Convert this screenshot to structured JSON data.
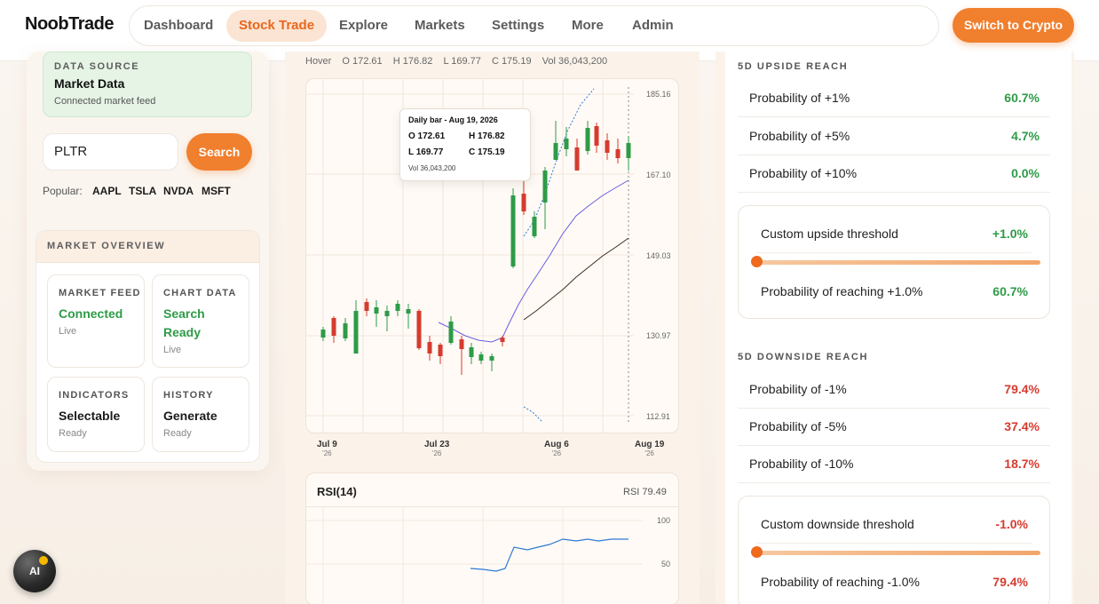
{
  "app": {
    "logo": "NoobTrade",
    "nav": [
      "Dashboard",
      "Stock Trade",
      "Explore",
      "Markets",
      "Settings",
      "More",
      "Admin"
    ],
    "active_nav": "Stock Trade",
    "crypto_button": "Switch to Crypto",
    "accent_color": "#f07f2e"
  },
  "left": {
    "data_source": {
      "label": "DATA SOURCE",
      "title": "Market Data",
      "sub": "Connected market feed"
    },
    "search": {
      "value": "PLTR",
      "button": "Search"
    },
    "popular": {
      "label": "Popular:",
      "tickers": [
        "AAPL",
        "TSLA",
        "NVDA",
        "MSFT"
      ]
    },
    "overview": {
      "title": "MARKET OVERVIEW",
      "cards": [
        {
          "label": "MARKET FEED",
          "value": "Connected",
          "sub": "Live"
        },
        {
          "label": "CHART DATA",
          "value": "Search Ready",
          "sub": "Live"
        },
        {
          "label": "INDICATORS",
          "value": "Selectable",
          "sub": "Ready"
        },
        {
          "label": "HISTORY",
          "value": "Generate",
          "sub": "Ready"
        }
      ]
    }
  },
  "chart": {
    "hover": {
      "label": "Hover",
      "o": "O 172.61",
      "h": "H 176.82",
      "l": "L 169.77",
      "c": "C 175.19",
      "vol": "Vol 36,043,200"
    },
    "tooltip": {
      "title": "Daily bar - Aug 19, 2026",
      "o": "O 172.61",
      "h": "H 176.82",
      "l": "L 169.77",
      "c": "C 175.19",
      "vol": "Vol 36,043,200"
    },
    "y_ticks": [
      "185.16",
      "167.10",
      "149.03",
      "130.97",
      "112.91"
    ],
    "x_ticks": [
      {
        "date": "Jul 9",
        "year": "'26"
      },
      {
        "date": "Jul 23",
        "year": "'26"
      },
      {
        "date": "Aug 6",
        "year": "'26"
      },
      {
        "date": "Aug 19",
        "year": "'26"
      }
    ],
    "up_color": "#2e9b47",
    "down_color": "#d63b2f"
  },
  "rsi": {
    "title": "RSI(14)",
    "value": "RSI 79.49",
    "ticks": [
      "100",
      "50"
    ]
  },
  "upside": {
    "title": "5D UPSIDE REACH",
    "rows": [
      {
        "label": "Probability of +1%",
        "value": "60.7%"
      },
      {
        "label": "Probability of +5%",
        "value": "4.7%"
      },
      {
        "label": "Probability of +10%",
        "value": "0.0%"
      }
    ],
    "custom": {
      "label": "Custom upside threshold",
      "value": "+1.0%",
      "reach_label": "Probability of reaching +1.0%",
      "reach_value": "60.7%"
    }
  },
  "downside": {
    "title": "5D DOWNSIDE REACH",
    "rows": [
      {
        "label": "Probability of -1%",
        "value": "79.4%"
      },
      {
        "label": "Probability of -5%",
        "value": "37.4%"
      },
      {
        "label": "Probability of -10%",
        "value": "18.7%"
      }
    ],
    "custom": {
      "label": "Custom downside threshold",
      "value": "-1.0%",
      "reach_label": "Probability of reaching -1.0%",
      "reach_value": "79.4%"
    }
  },
  "ai_button": "AI"
}
